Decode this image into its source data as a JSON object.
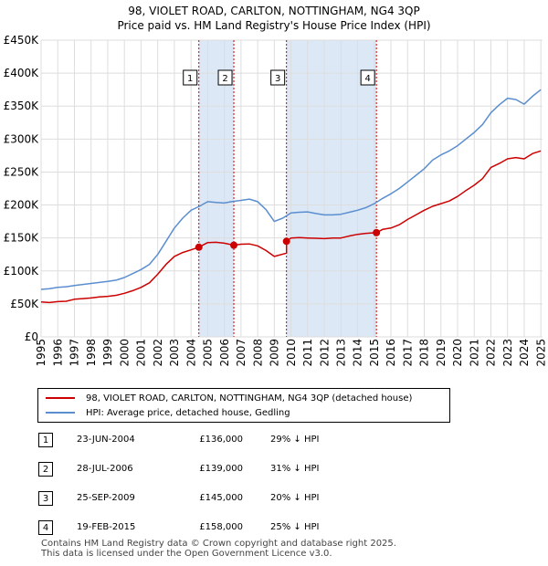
{
  "header": {
    "title": "98, VIOLET ROAD, CARLTON, NOTTINGHAM, NG4 3QP",
    "subtitle": "Price paid vs. HM Land Registry's House Price Index (HPI)"
  },
  "colors": {
    "price": "#cc0000",
    "hpi": "#5b8ecf",
    "shade": "#dce8f6",
    "grid": "#dddddd",
    "marker_line": "#cc0000"
  },
  "chart_data": {
    "type": "line",
    "title": "Price paid vs. HM Land Registry's House Price Index (HPI)",
    "xlim": [
      1995,
      2025.1
    ],
    "ylim": [
      0,
      450000
    ],
    "x_ticks": [
      1995,
      1996,
      1997,
      1998,
      1999,
      2000,
      2001,
      2002,
      2003,
      2004,
      2005,
      2006,
      2007,
      2008,
      2009,
      2010,
      2011,
      2012,
      2013,
      2014,
      2015,
      2016,
      2017,
      2018,
      2019,
      2020,
      2021,
      2022,
      2023,
      2024,
      2025
    ],
    "y_ticks": [
      0,
      50000,
      100000,
      150000,
      200000,
      250000,
      300000,
      350000,
      400000,
      450000
    ],
    "y_tick_labels": [
      "£0",
      "£50K",
      "£100K",
      "£150K",
      "£200K",
      "£250K",
      "£300K",
      "£350K",
      "£400K",
      "£450K"
    ],
    "series": [
      {
        "name": "98, VIOLET ROAD, CARLTON, NOTTINGHAM, NG4 3QP (detached house)",
        "color": "#cc0000",
        "x": [
          1995,
          1995.5,
          1996,
          1996.5,
          1997,
          1997.5,
          1998,
          1998.5,
          1999,
          1999.5,
          2000,
          2000.5,
          2001,
          2001.5,
          2002,
          2002.5,
          2003,
          2003.5,
          2004,
          2004.47,
          2004.47,
          2005,
          2005.5,
          2006,
          2006.57,
          2006.57,
          2007,
          2007.5,
          2008,
          2008.5,
          2009,
          2009.73,
          2009.73,
          2010,
          2010.5,
          2011,
          2011.5,
          2012,
          2012.5,
          2013,
          2013.5,
          2014,
          2014.5,
          2015.13,
          2015.13,
          2015.5,
          2016,
          2016.5,
          2017,
          2017.5,
          2018,
          2018.5,
          2019,
          2019.5,
          2020,
          2020.5,
          2021,
          2021.5,
          2022,
          2022.5,
          2023,
          2023.5,
          2024,
          2024.5,
          2025
        ],
        "y": [
          53000,
          52000,
          53500,
          54000,
          57000,
          58000,
          59000,
          60500,
          61500,
          63000,
          66000,
          70000,
          75000,
          82000,
          95000,
          110000,
          122000,
          128000,
          132000,
          136000,
          136000,
          143000,
          143500,
          142000,
          139000,
          139000,
          140500,
          141000,
          138000,
          131000,
          122000,
          127000,
          145000,
          150000,
          150500,
          150000,
          149500,
          149000,
          150000,
          150000,
          153000,
          155500,
          157000,
          158000,
          158000,
          163000,
          165000,
          170000,
          178000,
          185000,
          192000,
          198000,
          202000,
          206000,
          213000,
          222000,
          230000,
          240000,
          257000,
          263000,
          270000,
          272000,
          270000,
          278000,
          282000
        ]
      },
      {
        "name": "HPI: Average price, detached house, Gedling",
        "color": "#5b8ecf",
        "x": [
          1995,
          1995.5,
          1996,
          1996.5,
          1997,
          1997.5,
          1998,
          1998.5,
          1999,
          1999.5,
          2000,
          2000.5,
          2001,
          2001.5,
          2002,
          2002.5,
          2003,
          2003.5,
          2004,
          2004.5,
          2005,
          2005.5,
          2006,
          2006.5,
          2007,
          2007.5,
          2008,
          2008.5,
          2009,
          2009.5,
          2010,
          2010.5,
          2011,
          2011.5,
          2012,
          2012.5,
          2013,
          2013.5,
          2014,
          2014.5,
          2015,
          2015.5,
          2016,
          2016.5,
          2017,
          2017.5,
          2018,
          2018.5,
          2019,
          2019.5,
          2020,
          2020.5,
          2021,
          2021.5,
          2022,
          2022.5,
          2023,
          2023.5,
          2024,
          2024.5,
          2025
        ],
        "y": [
          72000,
          73000,
          75000,
          76000,
          78000,
          79500,
          81000,
          82500,
          84000,
          86000,
          90000,
          96000,
          102000,
          110000,
          125000,
          145000,
          165000,
          180000,
          192000,
          198000,
          205000,
          204000,
          203000,
          205500,
          207000,
          209000,
          205000,
          193000,
          175000,
          180000,
          188000,
          189000,
          189500,
          187000,
          185000,
          185000,
          186000,
          189000,
          192000,
          196000,
          202000,
          210000,
          217000,
          225000,
          235000,
          245000,
          255000,
          268000,
          276000,
          282000,
          290000,
          300000,
          310000,
          322000,
          340000,
          352000,
          362000,
          360000,
          353000,
          365000,
          375000
        ]
      }
    ],
    "sales": [
      {
        "num": "1",
        "x": 2004.47,
        "y": 136000
      },
      {
        "num": "2",
        "x": 2006.57,
        "y": 139000
      },
      {
        "num": "3",
        "x": 2009.73,
        "y": 145000
      },
      {
        "num": "4",
        "x": 2015.13,
        "y": 158000
      }
    ],
    "shaded_ranges": [
      [
        2004.47,
        2006.57
      ],
      [
        2009.73,
        2015.13
      ]
    ]
  },
  "legend": {
    "price_label": "98, VIOLET ROAD, CARLTON, NOTTINGHAM, NG4 3QP (detached house)",
    "hpi_label": "HPI: Average price, detached house, Gedling"
  },
  "sales_table": [
    {
      "num": "1",
      "date": "23-JUN-2004",
      "price": "£136,000",
      "hpi": "29% ↓ HPI"
    },
    {
      "num": "2",
      "date": "28-JUL-2006",
      "price": "£139,000",
      "hpi": "31% ↓ HPI"
    },
    {
      "num": "3",
      "date": "25-SEP-2009",
      "price": "£145,000",
      "hpi": "20% ↓ HPI"
    },
    {
      "num": "4",
      "date": "19-FEB-2015",
      "price": "£158,000",
      "hpi": "25% ↓ HPI"
    }
  ],
  "footer": {
    "line1": "Contains HM Land Registry data © Crown copyright and database right 2025.",
    "line2": "This data is licensed under the Open Government Licence v3.0."
  }
}
